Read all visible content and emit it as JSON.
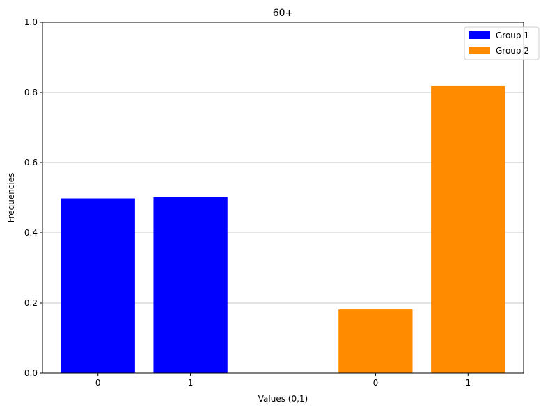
{
  "chart_data": {
    "type": "bar",
    "title": "60+",
    "xlabel": "Values (0,1)",
    "ylabel": "Frequencies",
    "ylim": [
      0,
      1.0
    ],
    "yticks": [
      "0.0",
      "0.2",
      "0.4",
      "0.6",
      "0.8",
      "1.0"
    ],
    "grid": "horizontal",
    "legend_position": "top-right",
    "series": [
      {
        "name": "Group 1",
        "color": "#0000ff",
        "categories": [
          "0",
          "1"
        ],
        "values": [
          0.498,
          0.502
        ]
      },
      {
        "name": "Group 2",
        "color": "#ff8c00",
        "categories": [
          "0",
          "1"
        ],
        "values": [
          0.182,
          0.818
        ]
      }
    ]
  }
}
